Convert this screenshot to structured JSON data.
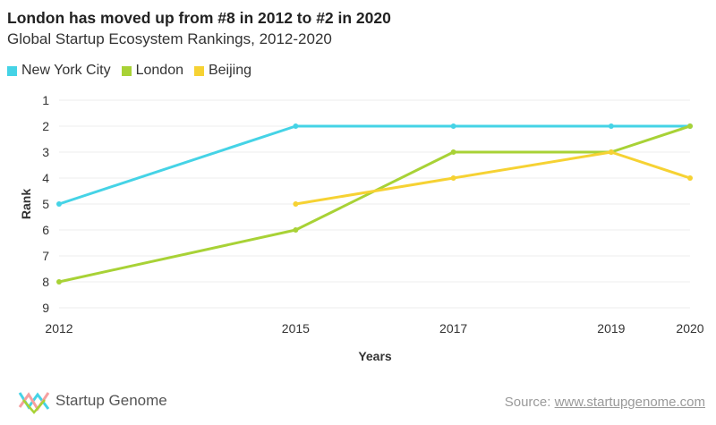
{
  "title": "London has moved up from #8 in 2012 to #2 in 2020",
  "subtitle": "Global Startup Ecosystem Rankings, 2012-2020",
  "footer": {
    "logo_text": "Startup Genome",
    "source_label": "Source: ",
    "source_url": "www.startupgenome.com"
  },
  "colors": {
    "new_york_city": "#45d3e6",
    "london": "#a8d236",
    "beijing": "#f6d233",
    "grid": "#eeeeee"
  },
  "chart_data": {
    "type": "line",
    "xlabel": "Years",
    "ylabel": "Rank",
    "x_ticks": [
      2012,
      2015,
      2017,
      2019,
      2020
    ],
    "xlim": [
      2012,
      2020
    ],
    "ylim": [
      1,
      9
    ],
    "y_reversed": true,
    "y_ticks": [
      1,
      2,
      3,
      4,
      5,
      6,
      7,
      8,
      9
    ],
    "grid": true,
    "legend_position": "top-left",
    "series": [
      {
        "name": "New York City",
        "color": "#45d3e6",
        "x": [
          2012,
          2015,
          2017,
          2019,
          2020
        ],
        "y": [
          5,
          2,
          2,
          2,
          2
        ]
      },
      {
        "name": "London",
        "color": "#a8d236",
        "x": [
          2012,
          2015,
          2017,
          2019,
          2020
        ],
        "y": [
          8,
          6,
          3,
          3,
          2
        ]
      },
      {
        "name": "Beijing",
        "color": "#f6d233",
        "x": [
          2015,
          2017,
          2019,
          2020
        ],
        "y": [
          5,
          4,
          3,
          4
        ]
      }
    ]
  }
}
